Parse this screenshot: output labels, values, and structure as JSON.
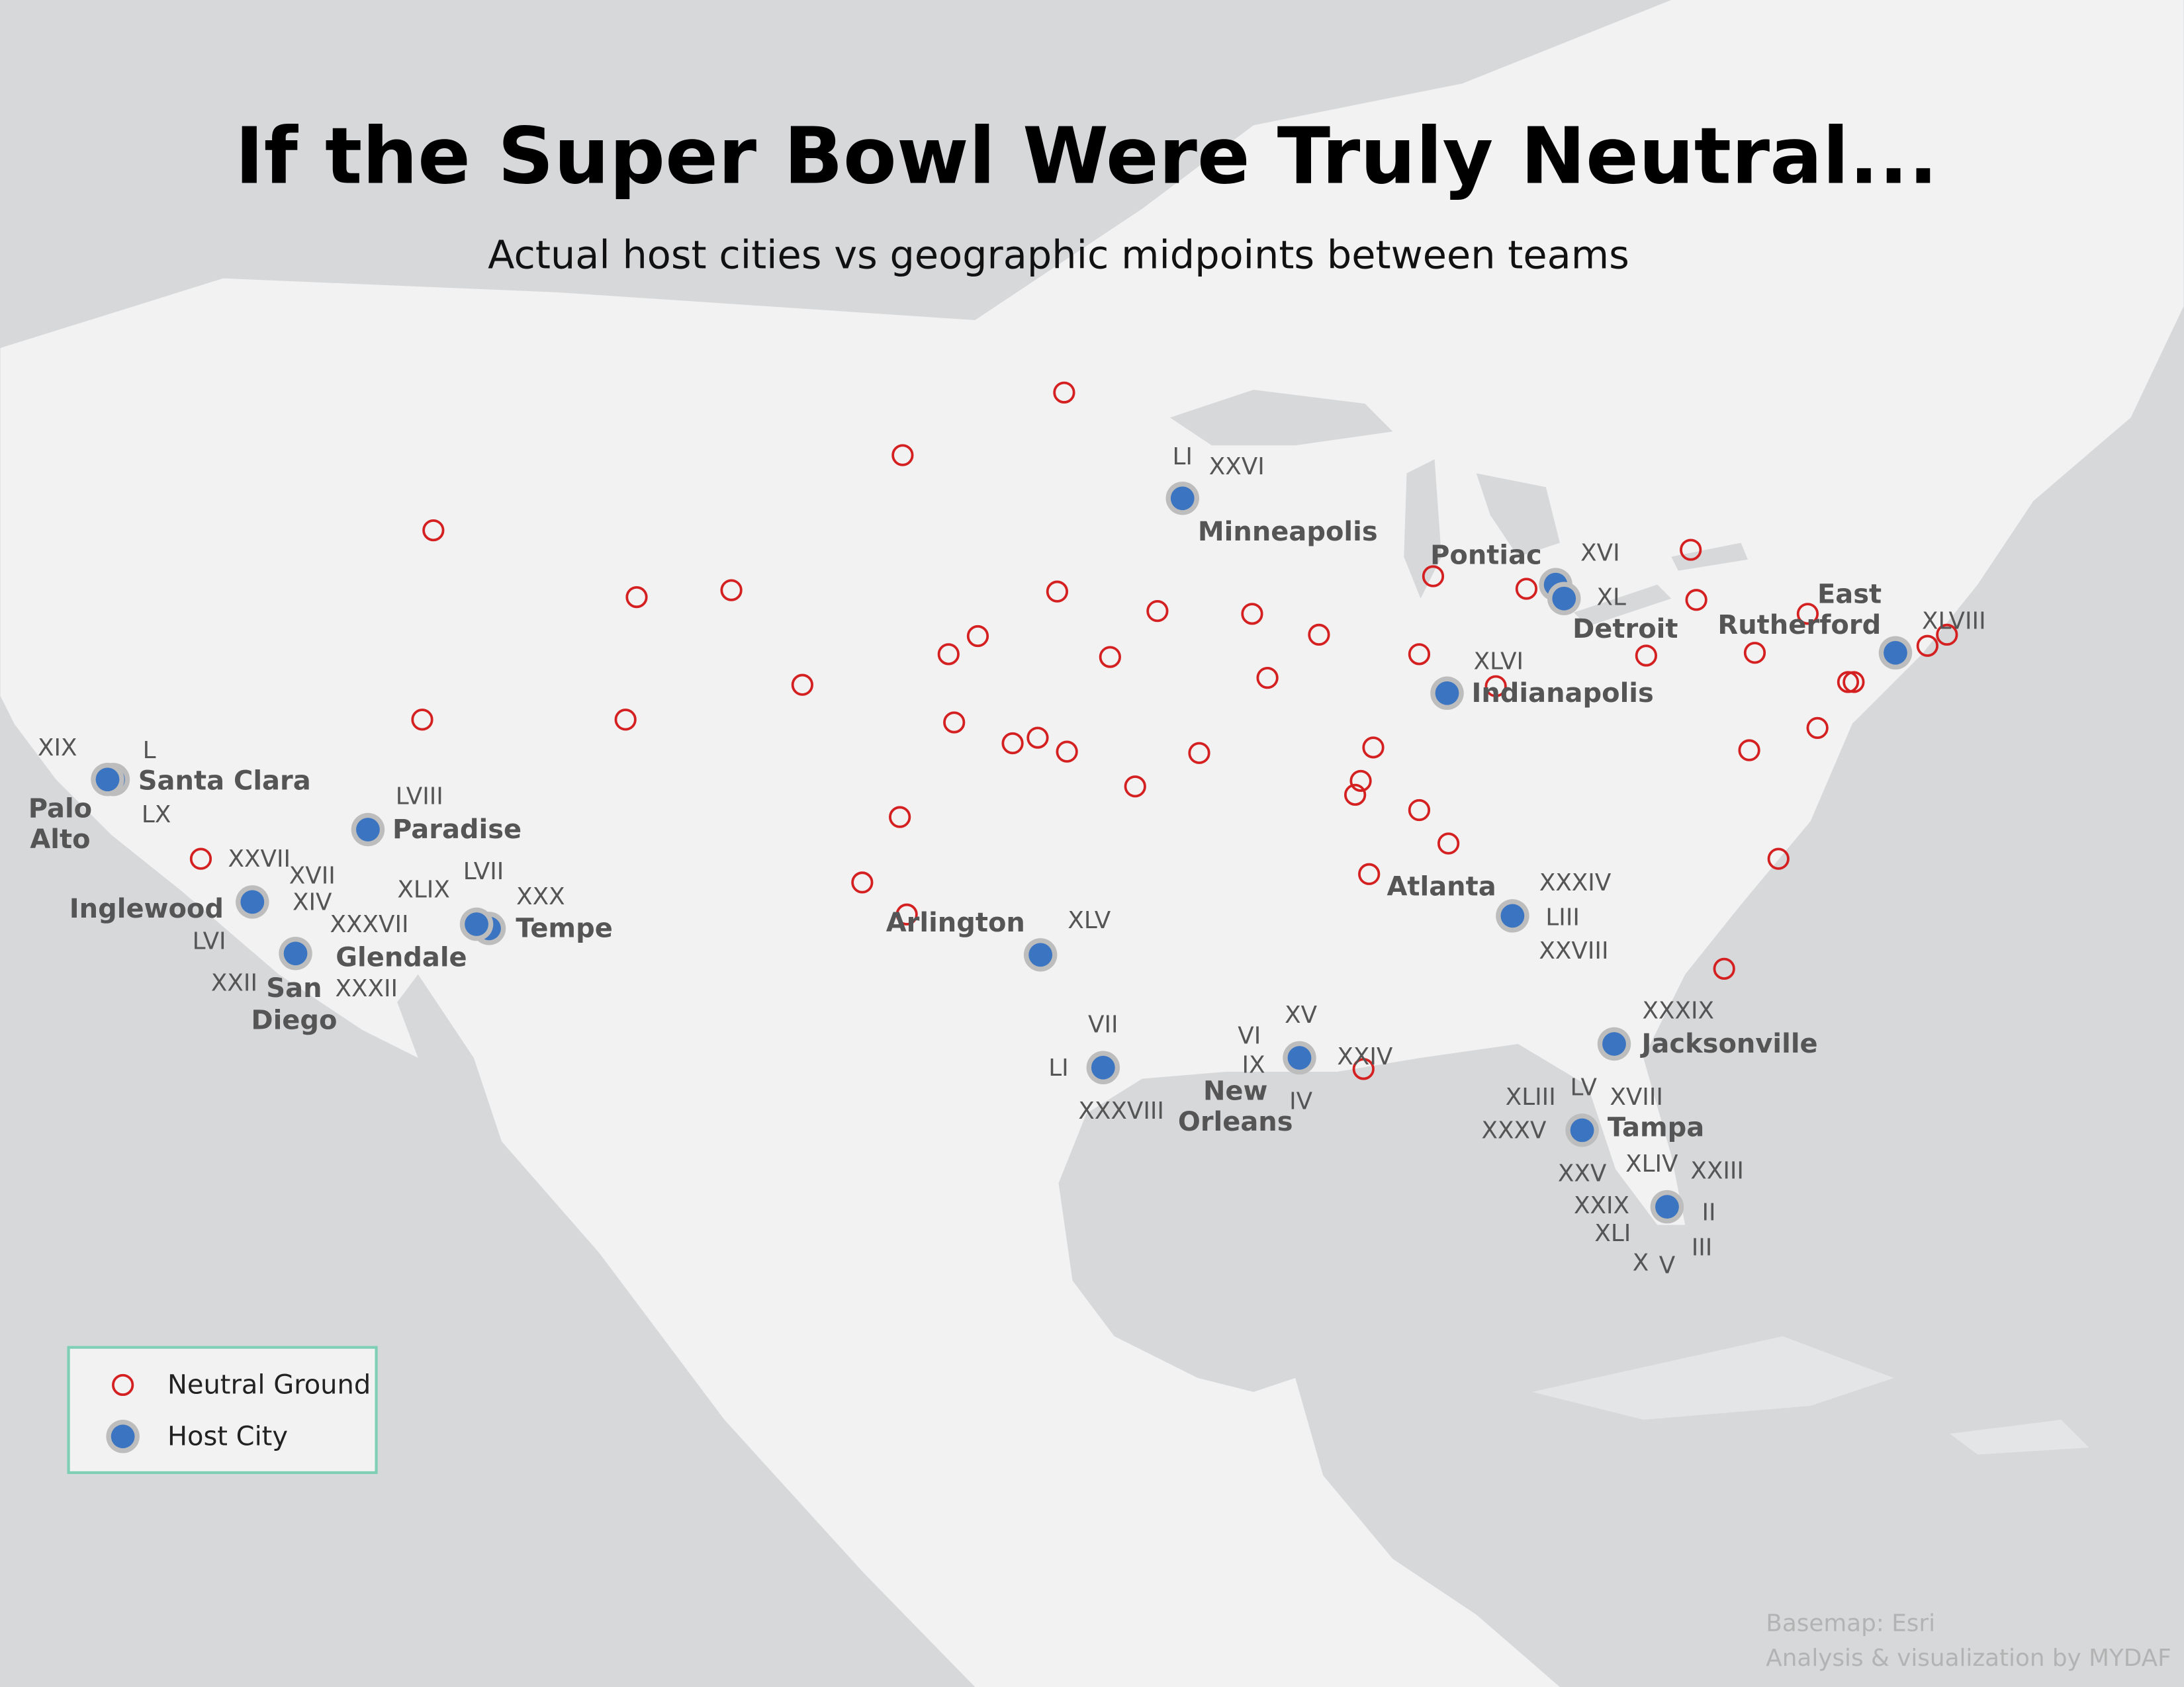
{
  "header": {
    "title": "If the Super Bowl Were Truly Neutral...",
    "subtitle": "Actual host cities vs geographic midpoints between teams"
  },
  "legend": {
    "items": [
      "Neutral Ground",
      "Host City"
    ]
  },
  "hosts": [
    {
      "name": "Minneapolis",
      "games": [
        "LI",
        "XXVI"
      ]
    },
    {
      "name": "Pontiac",
      "games": [
        "XVI"
      ]
    },
    {
      "name": "Detroit",
      "games": [
        "XL"
      ]
    },
    {
      "name": "Indianapolis",
      "games": [
        "XLVI"
      ]
    },
    {
      "name": "East Rutherford",
      "games": [
        "XLVIII"
      ]
    },
    {
      "name": "Atlanta",
      "games": [
        "XXXIV",
        "LIII",
        "XXVIII"
      ]
    },
    {
      "name": "Jacksonville",
      "games": [
        "XXXIX"
      ]
    },
    {
      "name": "Tampa",
      "games": [
        "XLIII",
        "LV",
        "XVIII",
        "XXXV"
      ]
    },
    {
      "name": null,
      "games": [
        "XXV",
        "XLIV",
        "XXIII",
        "XXIX",
        "II",
        "XLI",
        "III",
        "X",
        "V"
      ]
    },
    {
      "name": "New Orleans",
      "games": [
        "XV",
        "VI",
        "IX",
        "XXIV",
        "IV"
      ]
    },
    {
      "name": null,
      "games": [
        "VII",
        "LI",
        "XXXVIII"
      ]
    },
    {
      "name": "Arlington",
      "games": [
        "XLV"
      ]
    },
    {
      "name": "Tempe",
      "games": [
        "XXX",
        "LVII"
      ]
    },
    {
      "name": "Glendale",
      "games": [
        "XLIX",
        "XXXVII"
      ]
    },
    {
      "name": "Paradise",
      "games": [
        "LVIII"
      ]
    },
    {
      "name": "Santa Clara",
      "games": [
        "L",
        "LX"
      ]
    },
    {
      "name": "Palo Alto",
      "games": [
        "XIX"
      ]
    },
    {
      "name": "Inglewood",
      "games": [
        "XVII",
        "XIV",
        "XXVII",
        "LVI"
      ]
    },
    {
      "name": "San Diego",
      "games": [
        "XXII",
        "XXXII"
      ]
    }
  ],
  "credits": [
    "Basemap: Esri",
    "Analysis & visualization by MYDAF"
  ]
}
